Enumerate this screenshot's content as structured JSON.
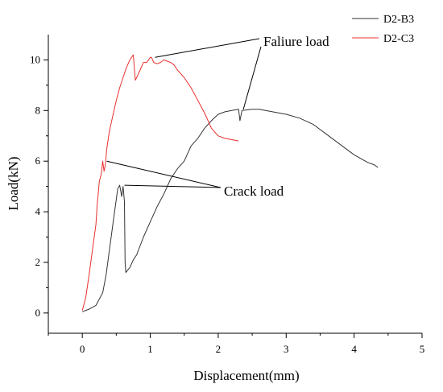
{
  "chart_data": {
    "type": "line",
    "xlabel": "Displacement(mm)",
    "ylabel": "Load(kN)",
    "xlim": [
      -0.5,
      5
    ],
    "ylim": [
      -0.8,
      11
    ],
    "xticks": [
      0,
      1,
      2,
      3,
      4,
      5
    ],
    "yticks": [
      0,
      2,
      4,
      6,
      8,
      10
    ],
    "grid": false,
    "legend": "top-right",
    "series": [
      {
        "name": "D2-B3",
        "color": "#333333",
        "x": [
          0.0,
          0.1,
          0.2,
          0.3,
          0.35,
          0.4,
          0.45,
          0.5,
          0.52,
          0.55,
          0.58,
          0.6,
          0.62,
          0.63,
          0.64,
          0.7,
          0.75,
          0.8,
          0.9,
          1.0,
          1.1,
          1.2,
          1.3,
          1.4,
          1.5,
          1.6,
          1.7,
          1.8,
          1.9,
          2.0,
          2.1,
          2.2,
          2.3,
          2.32,
          2.35,
          2.5,
          2.6,
          2.8,
          3.0,
          3.2,
          3.4,
          3.6,
          3.8,
          4.0,
          4.1,
          4.2,
          4.3,
          4.35
        ],
        "y": [
          0.05,
          0.15,
          0.3,
          0.8,
          1.5,
          2.5,
          3.5,
          4.5,
          4.9,
          5.05,
          4.6,
          5.0,
          4.4,
          2.0,
          1.6,
          1.8,
          2.1,
          2.3,
          3.0,
          3.6,
          4.2,
          4.7,
          5.3,
          5.7,
          6.0,
          6.6,
          6.9,
          7.3,
          7.6,
          7.85,
          7.95,
          8.0,
          8.05,
          7.6,
          8.0,
          8.05,
          8.05,
          7.95,
          7.85,
          7.7,
          7.45,
          7.05,
          6.65,
          6.25,
          6.1,
          5.95,
          5.85,
          5.75
        ]
      },
      {
        "name": "D2-C3",
        "color": "#e8302e",
        "x": [
          0.0,
          0.05,
          0.1,
          0.15,
          0.2,
          0.22,
          0.25,
          0.28,
          0.3,
          0.32,
          0.34,
          0.36,
          0.4,
          0.45,
          0.5,
          0.55,
          0.6,
          0.65,
          0.7,
          0.75,
          0.78,
          0.8,
          0.85,
          0.9,
          0.95,
          1.0,
          1.02,
          1.05,
          1.1,
          1.15,
          1.2,
          1.25,
          1.3,
          1.35,
          1.4,
          1.5,
          1.6,
          1.7,
          1.8,
          1.9,
          2.0,
          2.1,
          2.2,
          2.3
        ],
        "y": [
          0.1,
          0.6,
          1.5,
          2.5,
          3.5,
          4.3,
          5.2,
          5.5,
          6.0,
          5.6,
          5.9,
          6.5,
          7.2,
          7.8,
          8.4,
          8.9,
          9.3,
          9.7,
          10.0,
          10.2,
          9.2,
          9.3,
          9.6,
          9.9,
          9.9,
          10.1,
          10.1,
          9.9,
          9.85,
          9.9,
          10.0,
          9.95,
          9.9,
          9.8,
          9.6,
          9.3,
          8.9,
          8.4,
          7.9,
          7.3,
          7.0,
          6.9,
          6.85,
          6.8
        ]
      }
    ],
    "annotations": [
      {
        "text": "Faliure load"
      },
      {
        "text": "Crack load"
      }
    ]
  }
}
